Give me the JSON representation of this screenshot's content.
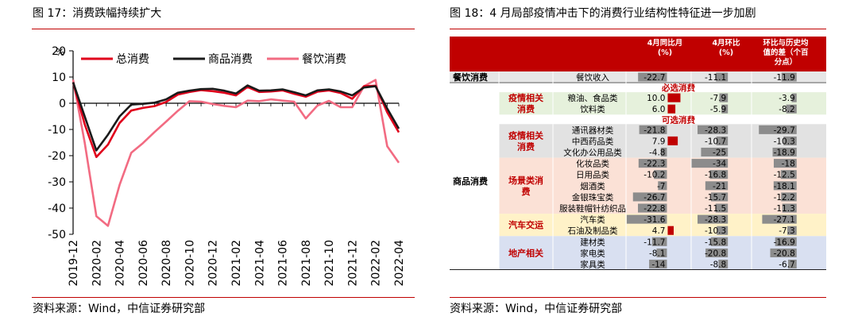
{
  "left": {
    "title": "图 17：消费跌幅持续扩大",
    "source": "资料来源：Wind，中信证券研究部"
  },
  "right": {
    "title": "图 18：4 月局部疫情冲击下的消费行业结构性特征进一步加剧",
    "source": "资料来源：Wind，中信证券研究部"
  },
  "colors": {
    "accent": "#c00000",
    "total": "#e0001b",
    "goods": "#1a1a1a",
    "catering": "#f26b82",
    "bar_gray": "#8c8c8c",
    "bar_red": "#c00000"
  },
  "chart_data": [
    {
      "type": "line",
      "unit_label": "%",
      "x": [
        "2019-12",
        "2020-01",
        "2020-02",
        "2020-03",
        "2020-04",
        "2020-05",
        "2020-06",
        "2020-07",
        "2020-08",
        "2020-09",
        "2020-10",
        "2020-11",
        "2020-12",
        "2021-01",
        "2021-02",
        "2021-03",
        "2021-04",
        "2021-05",
        "2021-06",
        "2021-07",
        "2021-08",
        "2021-09",
        "2021-10",
        "2021-11",
        "2021-12",
        "2022-01",
        "2022-02",
        "2022-03",
        "2022-04"
      ],
      "xticks": [
        "2019-12",
        "2020-02",
        "2020-04",
        "2020-06",
        "2020-08",
        "2020-10",
        "2020-12",
        "2021-02",
        "2021-04",
        "2021-06",
        "2021-08",
        "2021-10",
        "2021-12",
        "2022-02",
        "2022-04"
      ],
      "ylim": [
        -50,
        20
      ],
      "yticks": [
        "20",
        "10",
        "0",
        "-10",
        "-20",
        "-30",
        "-40",
        "-50"
      ],
      "legend_position": "top",
      "series": [
        {
          "name": "总消费",
          "color": "#e0001b",
          "values": [
            8.0,
            -8.0,
            -20.5,
            -15.8,
            -7.5,
            -2.8,
            -1.8,
            -1.1,
            0.5,
            3.3,
            4.3,
            5.0,
            4.6,
            4.0,
            3.0,
            6.2,
            4.3,
            4.5,
            4.9,
            3.6,
            2.5,
            4.4,
            4.9,
            3.9,
            1.7,
            6.5,
            6.7,
            -3.5,
            -11.1
          ]
        },
        {
          "name": "商品消费",
          "color": "#1a1a1a",
          "values": [
            8.0,
            -5.0,
            -18.0,
            -12.0,
            -5.0,
            -0.5,
            -0.2,
            0.2,
            1.5,
            4.0,
            4.8,
            5.4,
            5.5,
            4.8,
            3.7,
            6.8,
            4.8,
            4.9,
            5.3,
            4.2,
            3.0,
            4.9,
            5.3,
            4.5,
            3.0,
            6.0,
            6.5,
            -2.0,
            -9.7
          ]
        },
        {
          "name": "餐饮消费",
          "color": "#f26b82",
          "values": [
            9.0,
            -15.0,
            -43.1,
            -46.8,
            -31.1,
            -18.9,
            -15.2,
            -11.0,
            -7.0,
            -2.9,
            0.8,
            0.6,
            -0.3,
            -1.0,
            -1.5,
            1.0,
            0.8,
            1.5,
            1.0,
            0.6,
            -5.8,
            -0.9,
            0.9,
            -1.5,
            -1.5,
            6.5,
            8.9,
            -16.4,
            -22.7
          ]
        }
      ]
    },
    {
      "type": "table",
      "headers": [
        "4月同比月\n(%)",
        "4月环比\n(%)",
        "环比与历史均\n值的差（个百\n分点）"
      ],
      "sections": [
        {
          "kind": "cat",
          "category": "餐饮消费"
        },
        {
          "kind": "subhead",
          "text": "必选消费"
        },
        {
          "kind": "subhead",
          "text": "可选消费"
        }
      ],
      "category_labels": [
        "餐饮消费",
        "商品消费"
      ],
      "group_labels": [
        {
          "label": "疫情相关消费",
          "lines": [
            "疫情相关",
            "消费"
          ]
        },
        {
          "label": "疫情相关消费",
          "lines": [
            "疫情相关",
            "消费"
          ]
        },
        {
          "label": "场景类消费",
          "lines": [
            "场景类消",
            "费"
          ]
        },
        {
          "label": "汽车交运",
          "lines": [
            "汽车交运"
          ]
        },
        {
          "label": "地产相关",
          "lines": [
            "地产相关"
          ]
        }
      ],
      "subheaders": [
        "必选消费",
        "可选消费"
      ],
      "rows": [
        {
          "item": "餐饮收入",
          "yoy": -22.7,
          "mom": -11.1,
          "diff": -11.9
        },
        {
          "item": "粮油、食品类",
          "yoy": 10.0,
          "mom": -7.9,
          "diff": -3.9
        },
        {
          "item": "饮料类",
          "yoy": 6.0,
          "mom": -5.9,
          "diff": -8.2
        },
        {
          "item": "通讯器材类",
          "yoy": -21.8,
          "mom": -28.3,
          "diff": -29.7
        },
        {
          "item": "中西药品类",
          "yoy": 7.9,
          "mom": -10.7,
          "diff": -10.3
        },
        {
          "item": "文化办公用品类",
          "yoy": -4.8,
          "mom": -25.0,
          "diff": -18.9
        },
        {
          "item": "化妆品类",
          "yoy": -22.3,
          "mom": -34.0,
          "diff": -18.0
        },
        {
          "item": "日用品类",
          "yoy": -10.2,
          "mom": -16.8,
          "diff": -12.5
        },
        {
          "item": "烟酒类",
          "yoy": -7.0,
          "mom": -21.0,
          "diff": -18.1
        },
        {
          "item": "金银珠宝类",
          "yoy": -26.7,
          "mom": -15.7,
          "diff": -12.2
        },
        {
          "item": "服装鞋帽针纺织品",
          "yoy": -22.8,
          "mom": -11.5,
          "diff": -11.3
        },
        {
          "item": "汽车类",
          "yoy": -31.6,
          "mom": -28.3,
          "diff": -27.1
        },
        {
          "item": "石油及制品类",
          "yoy": 4.7,
          "mom": -10.3,
          "diff": -7.3
        },
        {
          "item": "建材类",
          "yoy": -11.7,
          "mom": -15.8,
          "diff": -16.9
        },
        {
          "item": "家电类",
          "yoy": -8.1,
          "mom": -20.8,
          "diff": -20.8
        },
        {
          "item": "家具类",
          "yoy": -14.0,
          "mom": -8.8,
          "diff": -6.7
        }
      ]
    }
  ]
}
